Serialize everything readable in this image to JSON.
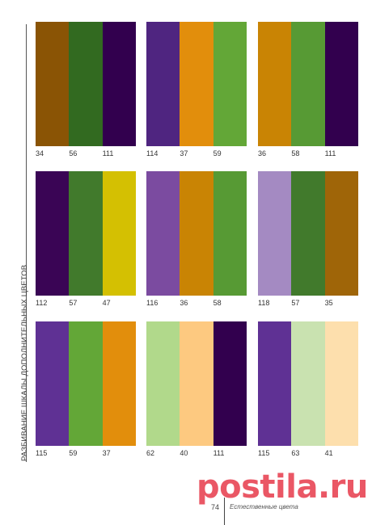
{
  "side_label": "РАЗБИВАНИЕ ШКАЛЫ ДОПОЛНИТЕЛЬНЫХ ЦВЕТОВ",
  "palettes": [
    {
      "codes": [
        "34",
        "56",
        "111"
      ],
      "colors": [
        "#8a5405",
        "#326a20",
        "#32004e"
      ]
    },
    {
      "codes": [
        "114",
        "37",
        "59"
      ],
      "colors": [
        "#4f2580",
        "#e28e0c",
        "#63a737"
      ]
    },
    {
      "codes": [
        "36",
        "58",
        "111"
      ],
      "colors": [
        "#c98404",
        "#579a34",
        "#32004e"
      ]
    },
    {
      "codes": [
        "112",
        "57",
        "47"
      ],
      "colors": [
        "#3a0555",
        "#417a2c",
        "#d4c002"
      ]
    },
    {
      "codes": [
        "116",
        "36",
        "58"
      ],
      "colors": [
        "#7b4ba0",
        "#c98404",
        "#579a34"
      ]
    },
    {
      "codes": [
        "118",
        "57",
        "35"
      ],
      "colors": [
        "#a48ac2",
        "#417a2c",
        "#9f6508"
      ]
    },
    {
      "codes": [
        "115",
        "59",
        "37"
      ],
      "colors": [
        "#5f3194",
        "#63a737",
        "#e28e0c"
      ]
    },
    {
      "codes": [
        "62",
        "40",
        "111"
      ],
      "colors": [
        "#b1d98b",
        "#fdc980",
        "#32004e"
      ]
    },
    {
      "codes": [
        "115",
        "63",
        "41"
      ],
      "colors": [
        "#5f3194",
        "#c9e2b0",
        "#fddfad"
      ]
    }
  ],
  "watermark": "postila.ru",
  "footer": {
    "page_number": "74",
    "title": "Естественные цвета"
  }
}
